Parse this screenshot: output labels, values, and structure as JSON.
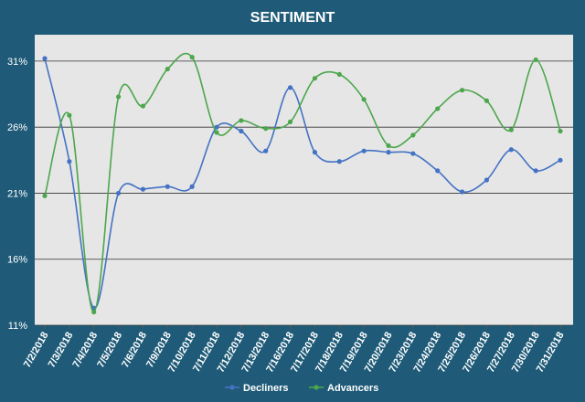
{
  "chart_data": {
    "type": "line",
    "title": "SENTIMENT",
    "xlabel": "",
    "ylabel": "",
    "ylim": [
      11,
      33
    ],
    "yticks": [
      11,
      16,
      21,
      26,
      31
    ],
    "ytick_labels": [
      "11%",
      "16%",
      "21%",
      "26%",
      "31%"
    ],
    "grid": true,
    "legend_position": "bottom",
    "categories": [
      "7/2/2018",
      "7/3/2018",
      "7/4/2018",
      "7/5/2018",
      "7/6/2018",
      "7/9/2018",
      "7/10/2018",
      "7/11/2018",
      "7/12/2018",
      "7/13/2018",
      "7/16/2018",
      "7/17/2018",
      "7/18/2018",
      "7/19/2018",
      "7/20/2018",
      "7/23/2018",
      "7/24/2018",
      "7/25/2018",
      "7/26/2018",
      "7/27/2018",
      "7/30/2018",
      "7/31/2018"
    ],
    "series": [
      {
        "name": "Decliners",
        "color": "#4472c4",
        "values": [
          31.2,
          23.4,
          12.3,
          21.0,
          21.3,
          21.5,
          21.5,
          26.0,
          25.7,
          24.2,
          29.0,
          24.1,
          23.4,
          24.2,
          24.1,
          24.0,
          22.7,
          21.1,
          22.0,
          24.3,
          22.7,
          23.5
        ]
      },
      {
        "name": "Advancers",
        "color": "#4ca64c",
        "values": [
          20.8,
          26.9,
          12.0,
          28.3,
          27.6,
          30.4,
          31.3,
          25.6,
          26.5,
          25.9,
          26.4,
          29.7,
          30.0,
          28.1,
          24.6,
          25.4,
          27.4,
          28.8,
          28.0,
          25.8,
          31.1,
          25.7
        ]
      }
    ]
  },
  "colors": {
    "frame_background": "#1f5b78",
    "plot_background": "#e6e6e6",
    "title_text": "#ffffff",
    "axis_text": "#ffffff",
    "gridline": "#333333"
  }
}
